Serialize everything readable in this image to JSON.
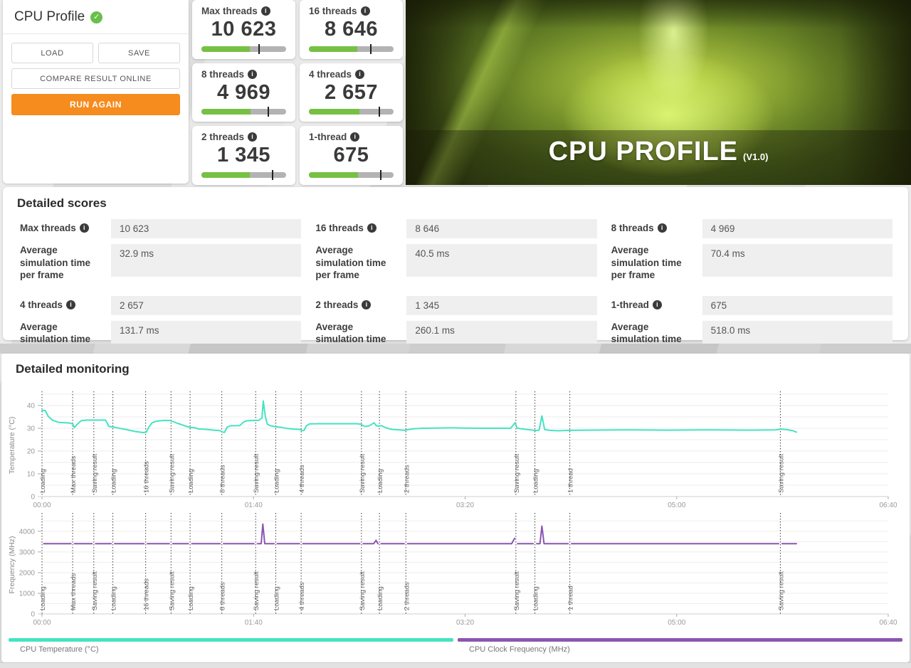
{
  "panel": {
    "title": "CPU Profile",
    "check_icon": "✓",
    "load_label": "LOAD",
    "save_label": "SAVE",
    "compare_label": "COMPARE RESULT ONLINE",
    "run_again_label": "RUN AGAIN"
  },
  "score_cards": [
    {
      "label": "Max threads",
      "value": "10 623",
      "bar_fill_pct": 57,
      "bar_tick_pct": 67
    },
    {
      "label": "16 threads",
      "value": "8 646",
      "bar_fill_pct": 57,
      "bar_tick_pct": 72
    },
    {
      "label": "8 threads",
      "value": "4 969",
      "bar_fill_pct": 58,
      "bar_tick_pct": 78
    },
    {
      "label": "4 threads",
      "value": "2 657",
      "bar_fill_pct": 60,
      "bar_tick_pct": 82
    },
    {
      "label": "2 threads",
      "value": "1 345",
      "bar_fill_pct": 57,
      "bar_tick_pct": 83
    },
    {
      "label": "1-thread",
      "value": "675",
      "bar_fill_pct": 58,
      "bar_tick_pct": 84
    }
  ],
  "hero": {
    "title": "CPU PROFILE",
    "version": "(V1.0)"
  },
  "detailed_scores": {
    "heading": "Detailed scores",
    "avg_label": "Average simulation time per frame",
    "items": [
      {
        "label": "Max threads",
        "score": "10 623",
        "avg": "32.9 ms"
      },
      {
        "label": "16 threads",
        "score": "8 646",
        "avg": "40.5 ms"
      },
      {
        "label": "8 threads",
        "score": "4 969",
        "avg": "70.4 ms"
      },
      {
        "label": "4 threads",
        "score": "2 657",
        "avg": "131.7 ms"
      },
      {
        "label": "2 threads",
        "score": "1 345",
        "avg": "260.1 ms"
      },
      {
        "label": "1-thread",
        "score": "675",
        "avg": "518.0 ms"
      }
    ]
  },
  "monitoring": {
    "heading": "Detailed monitoring",
    "legend": [
      {
        "label": "CPU Temperature (°C)",
        "color": "#45e3c1"
      },
      {
        "label": "CPU Clock Frequency (MHz)",
        "color": "#8a56b0"
      }
    ]
  },
  "chart_data": [
    {
      "type": "line",
      "title": "CPU Temperature",
      "ylabel": "Temperature (°C)",
      "xlabel": "",
      "ylim": [
        0,
        45
      ],
      "yticks": [
        0,
        10,
        20,
        30,
        40
      ],
      "ygrid_step": 5,
      "xlim_seconds": [
        0,
        400
      ],
      "xticks": [
        {
          "t": 0,
          "label": "00:00"
        },
        {
          "t": 100,
          "label": "01:40"
        },
        {
          "t": 200,
          "label": "03:20"
        },
        {
          "t": 300,
          "label": "05:00"
        },
        {
          "t": 400,
          "label": "06:40"
        }
      ],
      "phases": [
        {
          "t": 0,
          "label": "Loading"
        },
        {
          "t": 14.5,
          "label": "Max threads"
        },
        {
          "t": 24.5,
          "label": "Saving result"
        },
        {
          "t": 33.5,
          "label": "Loading"
        },
        {
          "t": 49,
          "label": "16 threads"
        },
        {
          "t": 61,
          "label": "Saving result"
        },
        {
          "t": 70,
          "label": "Loading"
        },
        {
          "t": 85,
          "label": "8 threads"
        },
        {
          "t": 101,
          "label": "Saving result"
        },
        {
          "t": 110.5,
          "label": "Loading"
        },
        {
          "t": 122.5,
          "label": "4 threads"
        },
        {
          "t": 151,
          "label": "Saving result"
        },
        {
          "t": 159.5,
          "label": "Loading"
        },
        {
          "t": 172,
          "label": "2 threads"
        },
        {
          "t": 224,
          "label": "Saving result"
        },
        {
          "t": 233,
          "label": "Loading"
        },
        {
          "t": 249.5,
          "label": "1 thread"
        },
        {
          "t": 349,
          "label": "Saving result"
        }
      ],
      "series": [
        {
          "name": "CPU Temperature (°C)",
          "color": "#45e3c1",
          "points": [
            [
              0,
              37.8
            ],
            [
              1.5,
              37.8
            ],
            [
              3,
              35.2
            ],
            [
              5,
              33.5
            ],
            [
              8,
              32.6
            ],
            [
              13,
              32.3
            ],
            [
              14.5,
              31.9
            ],
            [
              15.3,
              30.3
            ],
            [
              16.5,
              31.6
            ],
            [
              18.5,
              33.3
            ],
            [
              21,
              33.6
            ],
            [
              30,
              33.6
            ],
            [
              30.8,
              32.3
            ],
            [
              31.6,
              30.8
            ],
            [
              33.5,
              30.6
            ],
            [
              36,
              30.1
            ],
            [
              40,
              29.4
            ],
            [
              44,
              28.6
            ],
            [
              48,
              28.1
            ],
            [
              49.3,
              28.3
            ],
            [
              50.5,
              30.5
            ],
            [
              52,
              32.4
            ],
            [
              54,
              33.1
            ],
            [
              57,
              33.4
            ],
            [
              60.5,
              33.4
            ],
            [
              62,
              32.9
            ],
            [
              64,
              32.2
            ],
            [
              66,
              31.6
            ],
            [
              68,
              30.9
            ],
            [
              70,
              30.4
            ],
            [
              72.5,
              30.2
            ],
            [
              74,
              29.7
            ],
            [
              78,
              29.5
            ],
            [
              81,
              29.2
            ],
            [
              84,
              29.0
            ],
            [
              85.3,
              28.3
            ],
            [
              86.3,
              28.2
            ],
            [
              87.5,
              30.5
            ],
            [
              89,
              31.1
            ],
            [
              93.5,
              31.2
            ],
            [
              95.5,
              32.9
            ],
            [
              97,
              33.3
            ],
            [
              102.5,
              33.5
            ],
            [
              104,
              34.5
            ],
            [
              104.6,
              42.0
            ],
            [
              105.6,
              35.0
            ],
            [
              106.5,
              31.8
            ],
            [
              108,
              31.1
            ],
            [
              110.5,
              30.7
            ],
            [
              113,
              30.4
            ],
            [
              116,
              29.9
            ],
            [
              119,
              29.6
            ],
            [
              122,
              29.5
            ],
            [
              122.9,
              29.0
            ],
            [
              123.8,
              29.0
            ],
            [
              125,
              31.1
            ],
            [
              126.5,
              31.9
            ],
            [
              130,
              32.0
            ],
            [
              149,
              32.0
            ],
            [
              150.5,
              31.8
            ],
            [
              152.5,
              30.8
            ],
            [
              154.5,
              31.0
            ],
            [
              157,
              32.4
            ],
            [
              158,
              31.1
            ],
            [
              159.5,
              30.9
            ],
            [
              160.5,
              31.2
            ],
            [
              162.5,
              30.2
            ],
            [
              165.5,
              29.5
            ],
            [
              169,
              29.3
            ],
            [
              171.5,
              29.1
            ],
            [
              173,
              29.4
            ],
            [
              176,
              29.8
            ],
            [
              180,
              30.0
            ],
            [
              194,
              30.2
            ],
            [
              199,
              30.1
            ],
            [
              210,
              30.0
            ],
            [
              221.5,
              30.0
            ],
            [
              223.6,
              32.4
            ],
            [
              224.6,
              30.1
            ],
            [
              227,
              29.7
            ],
            [
              231,
              29.3
            ],
            [
              233.4,
              29.0
            ],
            [
              235,
              29.2
            ],
            [
              236.3,
              35.4
            ],
            [
              237.6,
              29.4
            ],
            [
              240,
              29.1
            ],
            [
              244,
              28.9
            ],
            [
              249.5,
              29.1
            ],
            [
              258,
              29.2
            ],
            [
              275,
              29.3
            ],
            [
              295,
              29.2
            ],
            [
              315,
              29.3
            ],
            [
              335,
              29.2
            ],
            [
              347,
              29.3
            ],
            [
              349.3,
              29.6
            ],
            [
              352,
              29.4
            ],
            [
              355,
              28.9
            ],
            [
              356.6,
              28.3
            ]
          ]
        }
      ]
    },
    {
      "type": "line",
      "title": "CPU Clock Frequency",
      "ylabel": "Frequency (MHz)",
      "xlabel": "",
      "ylim": [
        0,
        4750
      ],
      "yticks": [
        0,
        1000,
        2000,
        3000,
        4000
      ],
      "ygrid_step": 500,
      "xlim_seconds": [
        0,
        400
      ],
      "xticks": [
        {
          "t": 0,
          "label": "00:00"
        },
        {
          "t": 100,
          "label": "01:40"
        },
        {
          "t": 200,
          "label": "03:20"
        },
        {
          "t": 300,
          "label": "05:00"
        },
        {
          "t": 400,
          "label": "06:40"
        }
      ],
      "phases": [
        {
          "t": 0,
          "label": "Loading"
        },
        {
          "t": 14.5,
          "label": "Max threads"
        },
        {
          "t": 24.5,
          "label": "Saving result"
        },
        {
          "t": 33.5,
          "label": "Loading"
        },
        {
          "t": 49,
          "label": "16 threads"
        },
        {
          "t": 61,
          "label": "Saving result"
        },
        {
          "t": 70,
          "label": "Loading"
        },
        {
          "t": 85,
          "label": "8 threads"
        },
        {
          "t": 101,
          "label": "Saving result"
        },
        {
          "t": 110.5,
          "label": "Loading"
        },
        {
          "t": 122.5,
          "label": "4 threads"
        },
        {
          "t": 151,
          "label": "Saving result"
        },
        {
          "t": 159.5,
          "label": "Loading"
        },
        {
          "t": 172,
          "label": "2 threads"
        },
        {
          "t": 224,
          "label": "Saving result"
        },
        {
          "t": 233,
          "label": "Loading"
        },
        {
          "t": 249.5,
          "label": "1 thread"
        },
        {
          "t": 349,
          "label": "Saving result"
        }
      ],
      "series": [
        {
          "name": "CPU Clock Frequency (MHz)",
          "color": "#8a56b0",
          "points": [
            [
              0.8,
              3400
            ],
            [
              13.7,
              3400
            ],
            null,
            [
              15.3,
              3400
            ],
            [
              23.7,
              3400
            ],
            null,
            [
              25.3,
              3400
            ],
            [
              32.7,
              3400
            ],
            null,
            [
              34.3,
              3400
            ],
            [
              48.2,
              3400
            ],
            null,
            [
              49.8,
              3400
            ],
            [
              60.2,
              3400
            ],
            null,
            [
              61.8,
              3400
            ],
            [
              69.2,
              3400
            ],
            null,
            [
              70.8,
              3400
            ],
            [
              84.2,
              3400
            ],
            null,
            [
              85.8,
              3400
            ],
            [
              100.2,
              3400
            ],
            null,
            [
              101.8,
              3400
            ],
            [
              103.6,
              3400
            ],
            [
              104.4,
              4350
            ],
            [
              105.3,
              3400
            ],
            [
              109.7,
              3400
            ],
            null,
            [
              111.2,
              3400
            ],
            [
              121.7,
              3400
            ],
            null,
            [
              123.3,
              3400
            ],
            [
              150.2,
              3400
            ],
            null,
            [
              151.8,
              3400
            ],
            [
              156.8,
              3400
            ],
            [
              157.9,
              3560
            ],
            [
              158.8,
              3400
            ],
            null,
            [
              160.3,
              3400
            ],
            [
              171.2,
              3400
            ],
            null,
            [
              172.8,
              3400
            ],
            [
              222,
              3400
            ],
            [
              223.4,
              3660
            ],
            null,
            [
              224.8,
              3400
            ],
            [
              232.2,
              3400
            ],
            null,
            [
              233.8,
              3400
            ],
            [
              235.4,
              3400
            ],
            [
              236.3,
              4250
            ],
            [
              237.3,
              3400
            ],
            [
              248.7,
              3400
            ],
            null,
            [
              250.3,
              3400
            ],
            [
              348.2,
              3400
            ],
            null,
            [
              349.8,
              3400
            ],
            [
              356.6,
              3400
            ]
          ]
        }
      ]
    }
  ]
}
